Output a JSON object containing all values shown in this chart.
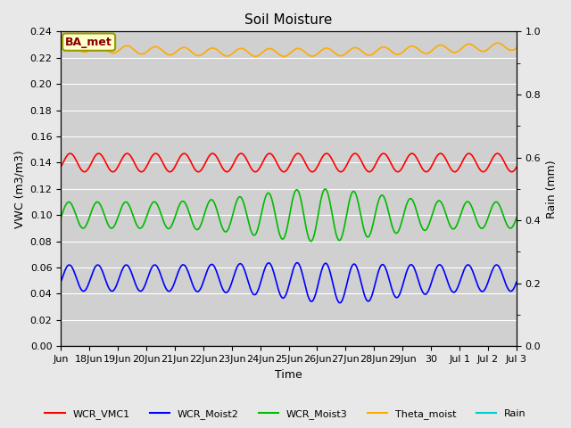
{
  "title": "Soil Moisture",
  "xlabel": "Time",
  "ylabel_left": "VWC (m3/m3)",
  "ylabel_right": "Rain (mm)",
  "ylim_left": [
    0.0,
    0.24
  ],
  "ylim_right": [
    0.0,
    1.0
  ],
  "figsize": [
    6.4,
    4.8
  ],
  "dpi": 100,
  "bg_color": "#e8e8e8",
  "plot_bg_color": "#d0d0d0",
  "annotation_text": "BA_met",
  "annotation_bg": "#ffffcc",
  "annotation_border": "#999900",
  "annotation_text_color": "#880000",
  "xtick_labels": [
    "Jun",
    "18Jun",
    "19Jun",
    "20Jun",
    "21Jun",
    "22Jun",
    "23Jun",
    "24Jun",
    "25Jun",
    "26Jun",
    "27Jun",
    "28Jun",
    "29Jun",
    "30",
    "Jul 1",
    "Jul 2",
    "Jul 3"
  ],
  "legend_entries": [
    {
      "label": "WCR_VMC1",
      "color": "#ff0000"
    },
    {
      "label": "WCR_Moist2",
      "color": "#0000ff"
    },
    {
      "label": "WCR_Moist3",
      "color": "#00bb00"
    },
    {
      "label": "Theta_moist",
      "color": "#ffaa00"
    },
    {
      "label": "Rain",
      "color": "#00cccc"
    }
  ]
}
